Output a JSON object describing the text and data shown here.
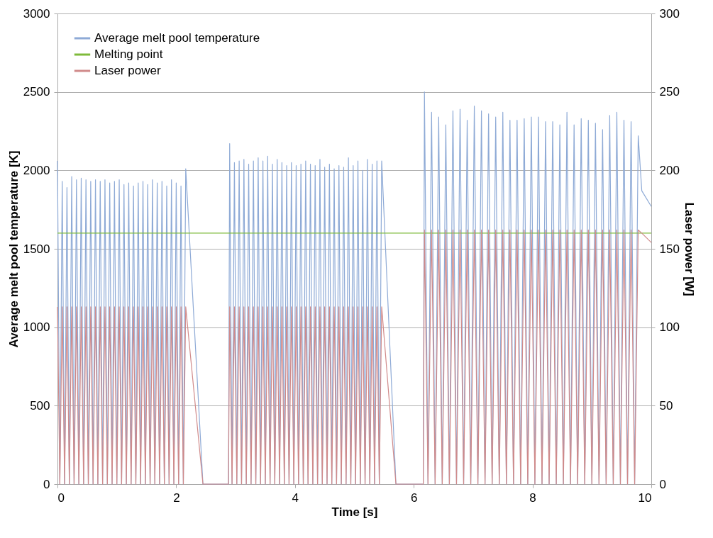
{
  "chart_data": {
    "type": "line",
    "xlabel": "Time [s]",
    "ylabel": "Average melt pool temperature [K]",
    "y2label": "Laser power [W]",
    "xlim": [
      0,
      10
    ],
    "xticks": [
      0,
      2,
      4,
      6,
      8,
      10
    ],
    "ylim": [
      0,
      3000
    ],
    "yticks": [
      0,
      500,
      1000,
      1500,
      2000,
      2500,
      3000
    ],
    "y2lim": [
      0,
      300
    ],
    "y2ticks": [
      0,
      50,
      100,
      150,
      200,
      250,
      300
    ],
    "grid": "y",
    "legend": "top left",
    "x": [
      0,
      0.04,
      0.08,
      0.12,
      0.16,
      0.2,
      0.24,
      0.28,
      0.32,
      0.36,
      0.4,
      0.44,
      0.48,
      0.52,
      0.56,
      0.6,
      0.64,
      0.68,
      0.72,
      0.76,
      0.8,
      0.84,
      0.88,
      0.92,
      0.96,
      1,
      1.04,
      1.08,
      1.12,
      1.16,
      1.2,
      1.24,
      1.28,
      1.32,
      1.36,
      1.4,
      1.44,
      1.48,
      1.52,
      1.56,
      1.6,
      1.64,
      1.68,
      1.72,
      1.76,
      1.8,
      1.84,
      1.88,
      1.92,
      1.96,
      2,
      2.04,
      2.08,
      2.12,
      2.16,
      2.45,
      2.88,
      2.9,
      2.94,
      2.98,
      3.02,
      3.06,
      3.1,
      3.14,
      3.18,
      3.22,
      3.26,
      3.3,
      3.34,
      3.38,
      3.42,
      3.46,
      3.5,
      3.54,
      3.58,
      3.62,
      3.66,
      3.7,
      3.74,
      3.78,
      3.82,
      3.86,
      3.9,
      3.94,
      3.98,
      4.02,
      4.06,
      4.1,
      4.14,
      4.18,
      4.22,
      4.26,
      4.3,
      4.34,
      4.38,
      4.42,
      4.46,
      4.5,
      4.54,
      4.58,
      4.62,
      4.66,
      4.7,
      4.74,
      4.78,
      4.82,
      4.86,
      4.9,
      4.94,
      4.98,
      5.02,
      5.06,
      5.1,
      5.14,
      5.18,
      5.22,
      5.26,
      5.3,
      5.34,
      5.38,
      5.42,
      5.46,
      5.7,
      6.16,
      6.18,
      6.24,
      6.3,
      6.36,
      6.42,
      6.48,
      6.54,
      6.6,
      6.66,
      6.72,
      6.78,
      6.84,
      6.9,
      6.96,
      7.02,
      7.08,
      7.14,
      7.2,
      7.26,
      7.32,
      7.38,
      7.44,
      7.5,
      7.56,
      7.62,
      7.68,
      7.74,
      7.8,
      7.86,
      7.92,
      7.98,
      8.04,
      8.1,
      8.16,
      8.22,
      8.28,
      8.34,
      8.4,
      8.46,
      8.52,
      8.58,
      8.64,
      8.7,
      8.76,
      8.82,
      8.88,
      8.94,
      9,
      9.06,
      9.12,
      9.18,
      9.24,
      9.3,
      9.36,
      9.42,
      9.48,
      9.54,
      9.6,
      9.66,
      9.72,
      9.78,
      9.84,
      10
    ],
    "series": [
      {
        "name": "Average melt pool temperature",
        "color": "#8eaad6",
        "values": [
          2060,
          0,
          1930,
          0,
          1890,
          0,
          1960,
          0,
          1940,
          0,
          1950,
          0,
          1940,
          0,
          1930,
          0,
          1940,
          0,
          1930,
          0,
          1940,
          0,
          1920,
          0,
          1930,
          0,
          1940,
          0,
          1910,
          0,
          1920,
          0,
          1900,
          0,
          1920,
          0,
          1930,
          0,
          1910,
          0,
          1940,
          0,
          1920,
          0,
          1930,
          0,
          1900,
          0,
          1940,
          0,
          1920,
          0,
          1900,
          0,
          2010,
          0,
          0,
          2170,
          0,
          2050,
          0,
          2060,
          0,
          2070,
          0,
          2040,
          0,
          2060,
          0,
          2080,
          0,
          2060,
          0,
          2090,
          0,
          2040,
          0,
          2070,
          0,
          2050,
          0,
          2030,
          0,
          2050,
          0,
          2030,
          0,
          2040,
          0,
          2060,
          0,
          2040,
          0,
          2030,
          0,
          2070,
          0,
          2020,
          0,
          2040,
          0,
          2010,
          0,
          2030,
          0,
          2020,
          0,
          2080,
          0,
          2030,
          0,
          2060,
          0,
          2000,
          0,
          2070,
          0,
          2040,
          0,
          2060,
          0,
          2060,
          0,
          0,
          2500,
          0,
          2370,
          0,
          2340,
          0,
          2290,
          0,
          2380,
          0,
          2390,
          0,
          2320,
          0,
          2410,
          0,
          2380,
          0,
          2360,
          0,
          2340,
          0,
          2370,
          0,
          2320,
          0,
          2320,
          0,
          2330,
          0,
          2340,
          0,
          2340,
          0,
          2310,
          0,
          2310,
          0,
          2290,
          0,
          2370,
          0,
          2290,
          0,
          2330,
          0,
          2320,
          0,
          2300,
          0,
          2260,
          0,
          2350,
          0,
          2370,
          0,
          2320,
          0,
          2310,
          0,
          2220,
          1870,
          1770
        ]
      },
      {
        "name": "Melting point",
        "color": "#7fba3a",
        "x": [
          0,
          10
        ],
        "values": [
          1600,
          1600
        ]
      },
      {
        "name": "Laser power",
        "color": "#d08a8a",
        "axis": "y2",
        "values": [
          113,
          0,
          113,
          0,
          113,
          0,
          113,
          0,
          113,
          0,
          113,
          0,
          113,
          0,
          113,
          0,
          113,
          0,
          113,
          0,
          113,
          0,
          113,
          0,
          113,
          0,
          113,
          0,
          113,
          0,
          113,
          0,
          113,
          0,
          113,
          0,
          113,
          0,
          113,
          0,
          113,
          0,
          113,
          0,
          113,
          0,
          113,
          0,
          113,
          0,
          113,
          0,
          113,
          0,
          113,
          0,
          0,
          113,
          0,
          113,
          0,
          113,
          0,
          113,
          0,
          113,
          0,
          113,
          0,
          113,
          0,
          113,
          0,
          113,
          0,
          113,
          0,
          113,
          0,
          113,
          0,
          113,
          0,
          113,
          0,
          113,
          0,
          113,
          0,
          113,
          0,
          113,
          0,
          113,
          0,
          113,
          0,
          113,
          0,
          113,
          0,
          113,
          0,
          113,
          0,
          113,
          0,
          113,
          0,
          113,
          0,
          113,
          0,
          113,
          0,
          113,
          0,
          113,
          0,
          113,
          0,
          113,
          0,
          0,
          162,
          0,
          162,
          0,
          162,
          0,
          162,
          0,
          162,
          0,
          162,
          0,
          162,
          0,
          162,
          0,
          162,
          0,
          162,
          0,
          162,
          0,
          162,
          0,
          162,
          0,
          162,
          0,
          162,
          0,
          162,
          0,
          162,
          0,
          162,
          0,
          162,
          0,
          162,
          0,
          162,
          0,
          162,
          0,
          162,
          0,
          162,
          0,
          162,
          0,
          162,
          0,
          162,
          0,
          162,
          0,
          162,
          0,
          162,
          0,
          162,
          160,
          154
        ]
      }
    ]
  }
}
